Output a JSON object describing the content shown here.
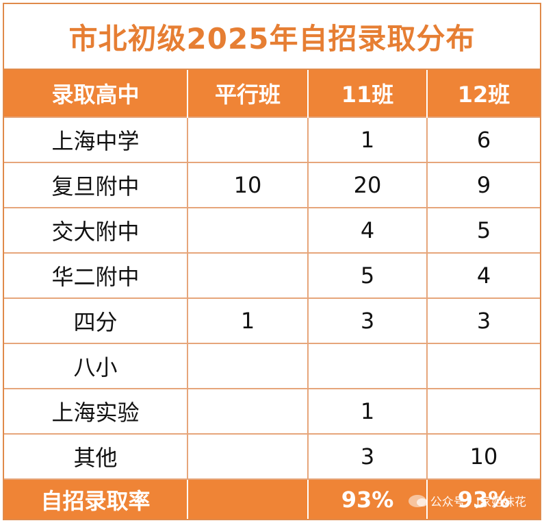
{
  "title": "市北初级2025年自招录取分布",
  "headers": [
    "录取高中",
    "平行班",
    "11班",
    "12班"
  ],
  "rows": [
    [
      "上海中学",
      "",
      "1",
      "6"
    ],
    [
      "复旦附中",
      "10",
      "20",
      "9"
    ],
    [
      "交大附中",
      "",
      "4",
      "5"
    ],
    [
      "华二附中",
      "",
      "5",
      "4"
    ],
    [
      "四分",
      "1",
      "3",
      "3"
    ],
    [
      "八小",
      "",
      "",
      ""
    ],
    [
      "上海实验",
      "",
      "1",
      ""
    ],
    [
      "其他",
      "",
      "3",
      "10"
    ]
  ],
  "footer": [
    "自招录取率",
    "",
    "93%",
    "93%"
  ],
  "watermark": {
    "label": "公众号 · J家姐妹花",
    "icon": "wechat-icon"
  },
  "colors": {
    "accent": "#ef8436",
    "title": "#e67e33",
    "grid": "#e6a57a"
  }
}
